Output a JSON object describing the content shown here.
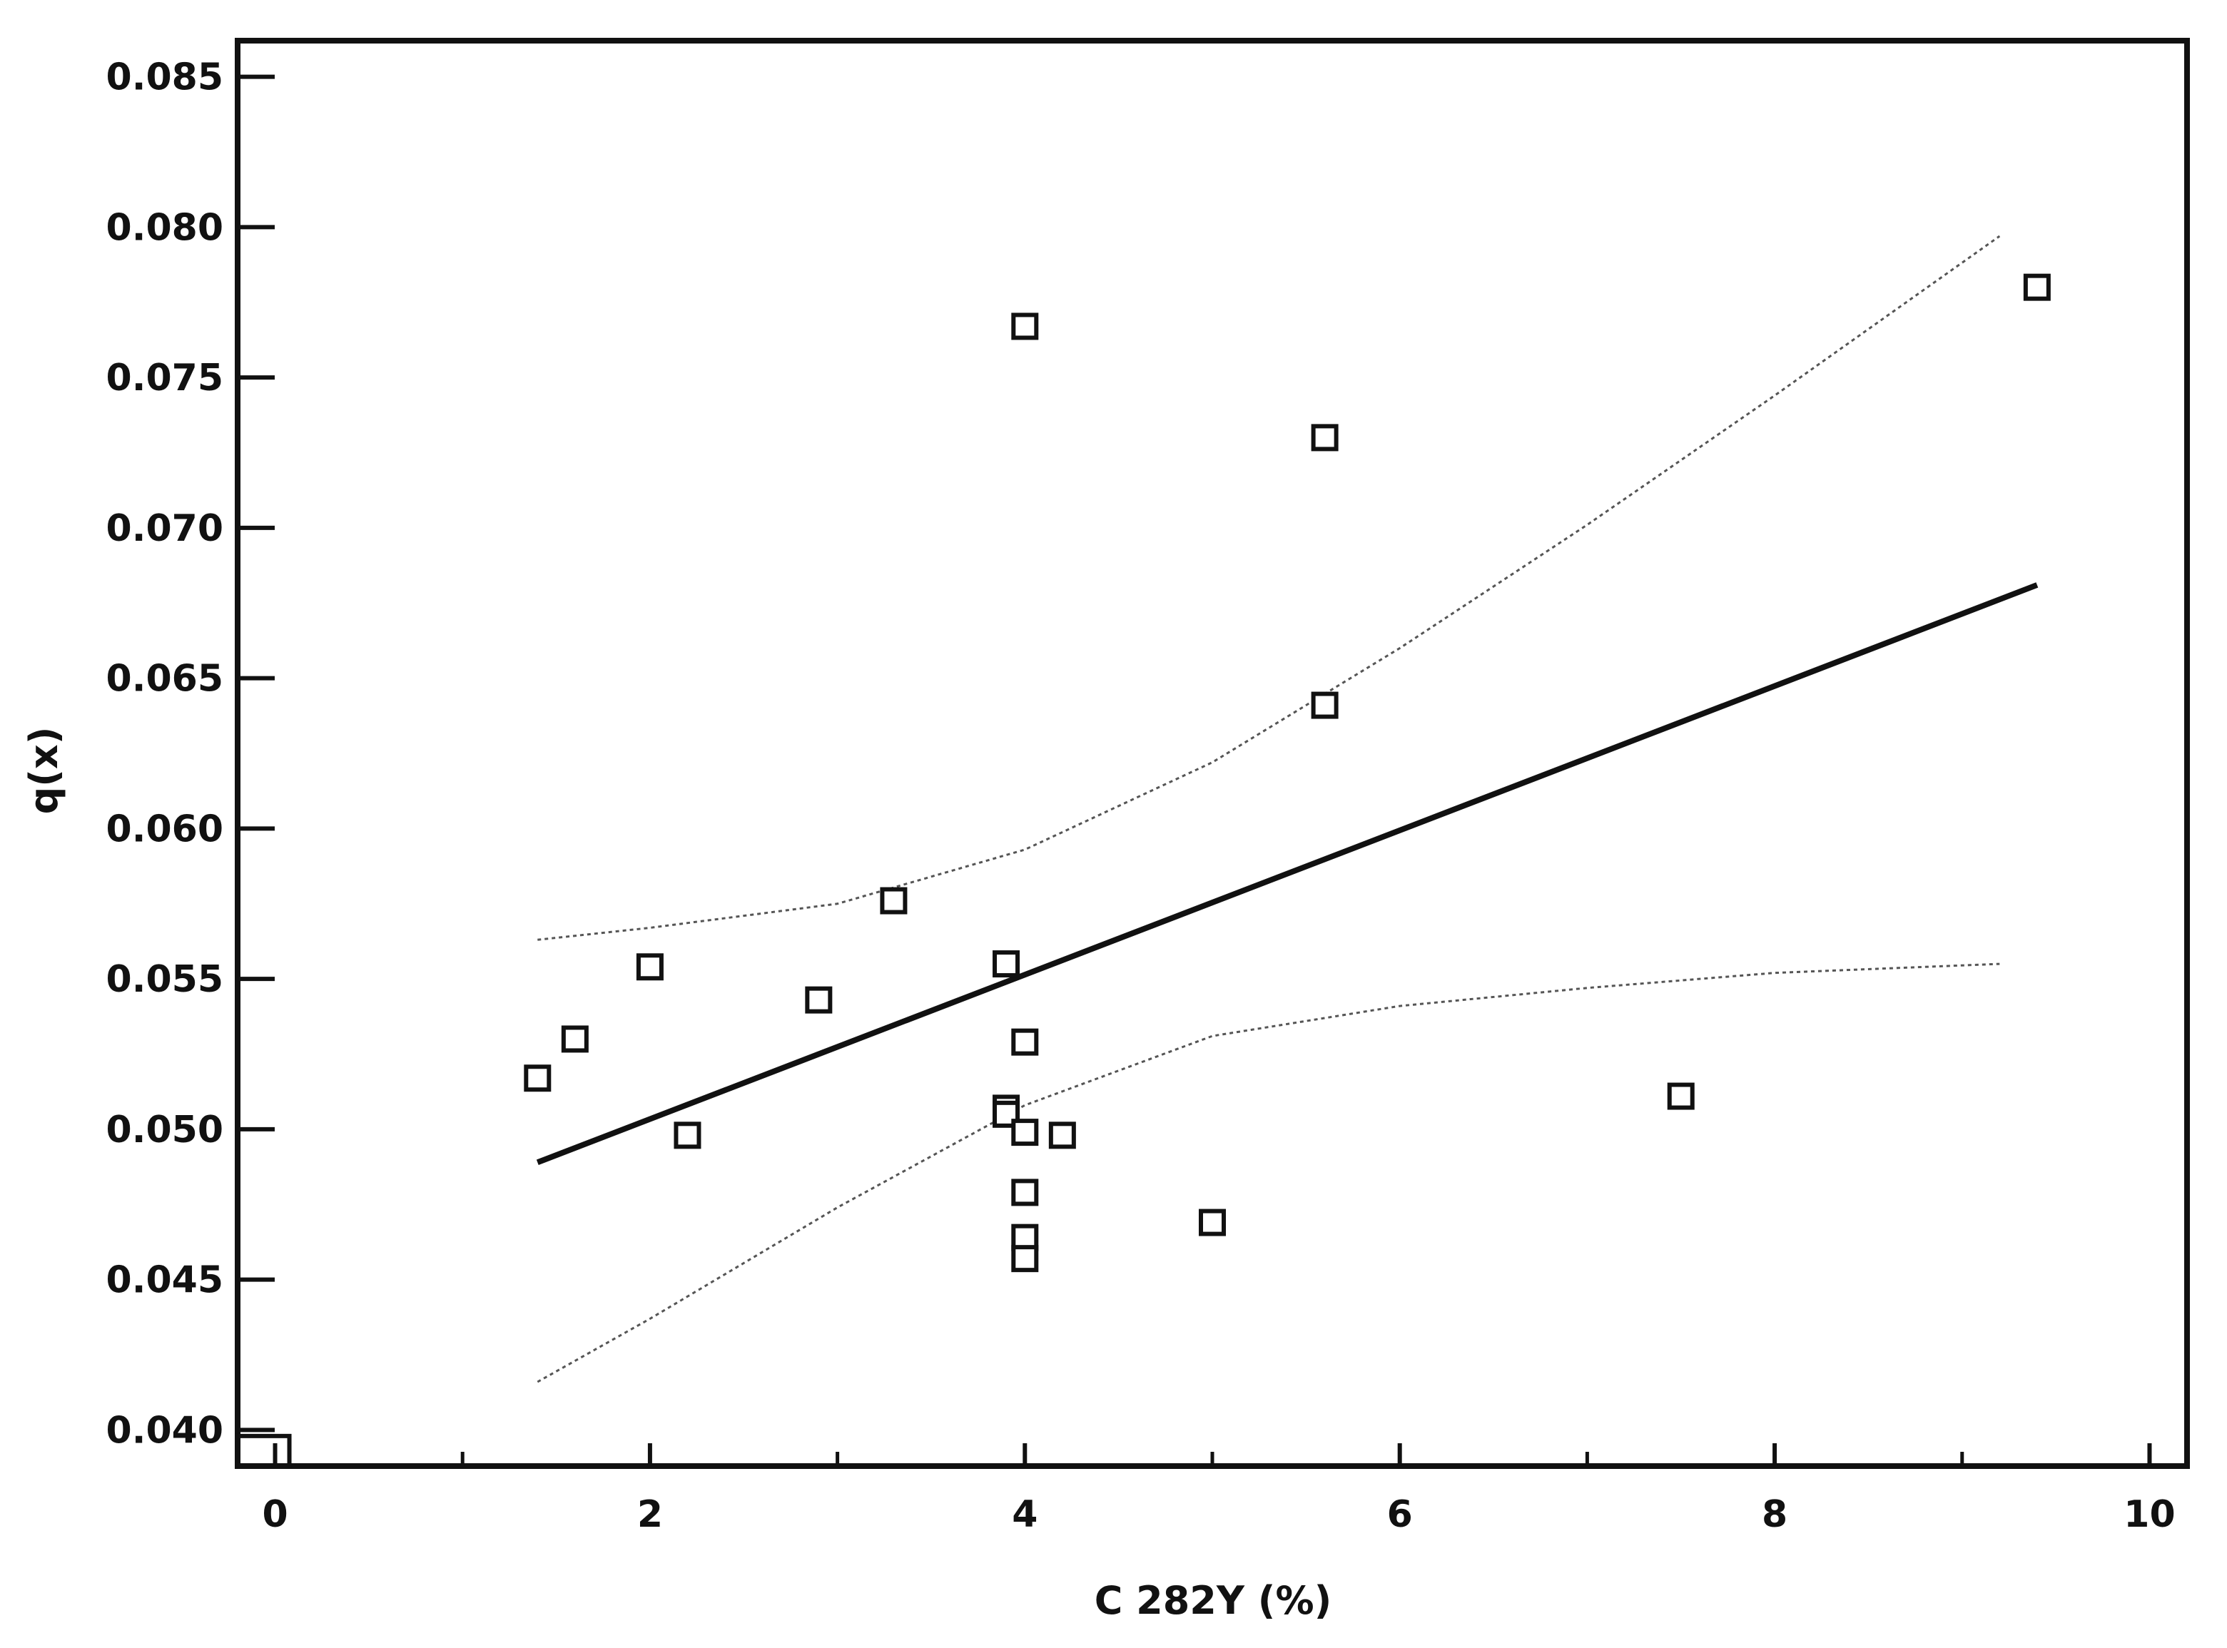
{
  "chart_data": {
    "type": "scatter",
    "title": "",
    "xlabel": "C 282Y (%)",
    "ylabel": "q(x)",
    "xlim": [
      -0.2,
      10.2
    ],
    "ylim": [
      0.0388,
      0.0862
    ],
    "x_ticks": [
      0,
      2,
      4,
      6,
      8,
      10
    ],
    "x_minor_ticks": [
      1,
      3,
      5,
      7,
      9
    ],
    "x_tick_labels": [
      "0",
      "2",
      "4",
      "6",
      "8",
      "10"
    ],
    "y_ticks": [
      0.04,
      0.045,
      0.05,
      0.055,
      0.06,
      0.065,
      0.07,
      0.075,
      0.08,
      0.085
    ],
    "y_tick_labels": [
      "0.040",
      "0.045",
      "0.050",
      "0.055",
      "0.060",
      "0.065",
      "0.070",
      "0.075",
      "0.080",
      "0.085"
    ],
    "grid": false,
    "points": {
      "marker": "open-square",
      "x": [
        1.4,
        1.6,
        2.0,
        2.2,
        2.9,
        3.3,
        3.9,
        3.9,
        3.9,
        4.0,
        4.0,
        4.0,
        4.0,
        4.0,
        4.0,
        4.2,
        5.0,
        5.6,
        5.6,
        7.5,
        9.4
      ],
      "y": [
        0.0517,
        0.053,
        0.0554,
        0.0498,
        0.0543,
        0.0576,
        0.0555,
        0.0507,
        0.0505,
        0.0767,
        0.0529,
        0.0479,
        0.0464,
        0.0457,
        0.0499,
        0.0498,
        0.0469,
        0.073,
        0.0641,
        0.0511,
        0.078
      ]
    },
    "regression_line": {
      "x": [
        1.4,
        9.4
      ],
      "y": [
        0.0489,
        0.0681
      ]
    },
    "confidence_band_upper": {
      "x": [
        1.4,
        2.0,
        3.0,
        4.0,
        5.0,
        6.0,
        7.0,
        8.0,
        9.2
      ],
      "y": [
        0.0563,
        0.0567,
        0.0575,
        0.0593,
        0.0622,
        0.066,
        0.0701,
        0.0744,
        0.0797
      ]
    },
    "confidence_band_lower": {
      "x": [
        1.4,
        2.0,
        3.0,
        4.0,
        5.0,
        6.0,
        7.0,
        8.0,
        9.2
      ],
      "y": [
        0.0416,
        0.0437,
        0.0474,
        0.0508,
        0.0531,
        0.0541,
        0.0547,
        0.0552,
        0.0555
      ]
    }
  },
  "colors": {
    "axis": "#111111",
    "marker": "#111111",
    "regression": "#111111",
    "band": "#555555"
  }
}
